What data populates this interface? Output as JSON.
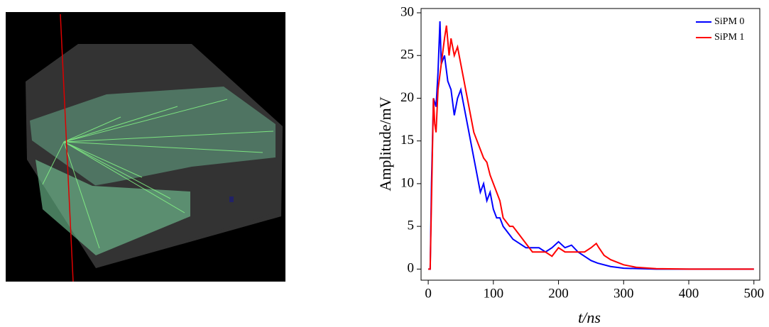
{
  "chart_data": {
    "type": "line",
    "xlabel": "t/ns",
    "ylabel": "Amplitude/mV",
    "xlim": [
      -11,
      509
    ],
    "ylim": [
      -1.3,
      30.5
    ],
    "xticks": [
      0,
      100,
      200,
      300,
      400,
      500
    ],
    "yticks": [
      0,
      5,
      10,
      15,
      20,
      25,
      30
    ],
    "legend": "upper right",
    "series": [
      {
        "name": "SiPM 0",
        "color": "#0000ff",
        "x": [
          0,
          3,
          5,
          8,
          12,
          15,
          18,
          20,
          25,
          30,
          35,
          40,
          45,
          50,
          55,
          60,
          65,
          70,
          75,
          80,
          85,
          90,
          95,
          100,
          105,
          110,
          115,
          120,
          125,
          130,
          140,
          150,
          160,
          170,
          180,
          190,
          200,
          210,
          220,
          230,
          240,
          250,
          260,
          280,
          300,
          350,
          500
        ],
        "values": [
          0,
          0,
          10,
          20,
          19,
          23,
          29,
          24,
          25,
          22,
          21,
          18,
          20,
          21,
          19,
          17,
          15,
          13,
          11,
          9,
          10,
          8,
          9,
          7,
          6,
          6,
          5,
          4.5,
          4,
          3.5,
          3,
          2.5,
          2.5,
          2.5,
          2,
          2.5,
          3.2,
          2.5,
          2.8,
          2,
          1.5,
          1,
          0.7,
          0.3,
          0.1,
          0,
          0
        ]
      },
      {
        "name": "SiPM 1",
        "color": "#ff0000",
        "x": [
          0,
          3,
          8,
          10,
          12,
          15,
          20,
          25,
          28,
          32,
          35,
          40,
          45,
          50,
          55,
          60,
          65,
          70,
          75,
          80,
          85,
          90,
          95,
          100,
          105,
          110,
          115,
          120,
          125,
          130,
          140,
          150,
          160,
          170,
          180,
          190,
          200,
          210,
          220,
          230,
          240,
          250,
          258,
          262,
          270,
          280,
          300,
          320,
          350,
          400,
          500
        ],
        "values": [
          0,
          0,
          20,
          17,
          16,
          21,
          24,
          27,
          28.5,
          25,
          27,
          25,
          26,
          24,
          22,
          20,
          18,
          16,
          15,
          14,
          13,
          12.5,
          11,
          10,
          9,
          8,
          6,
          5.5,
          5,
          5,
          4,
          3,
          2,
          2,
          2,
          1.5,
          2.5,
          2,
          2,
          2,
          2,
          2.5,
          3,
          2.5,
          1.6,
          1.1,
          0.5,
          0.2,
          0.05,
          0,
          0
        ]
      }
    ]
  }
}
